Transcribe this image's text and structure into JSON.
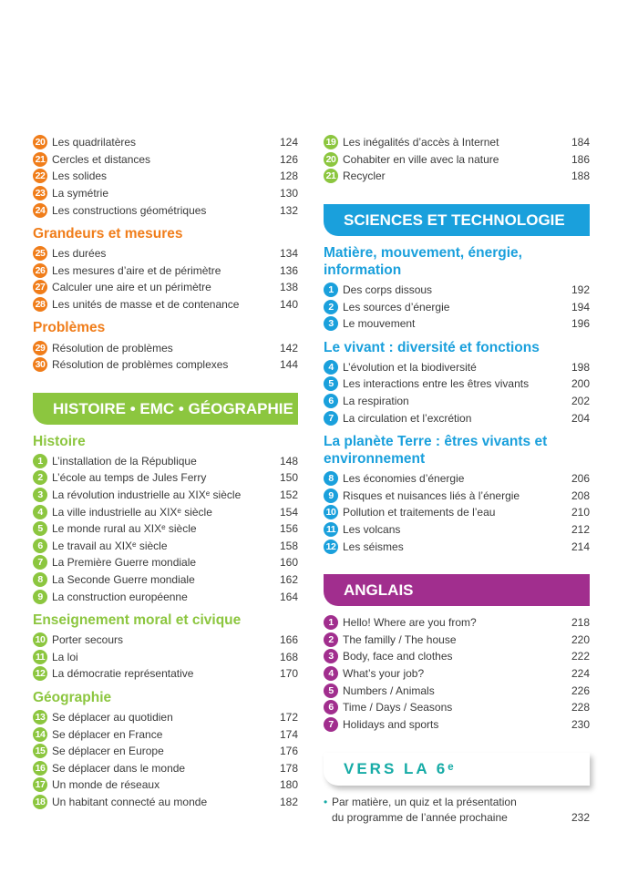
{
  "colors": {
    "mathematiques": "#f07d1a",
    "histoire_geo": "#8cc63f",
    "sciences": "#1aa0dc",
    "anglais": "#a12e8e",
    "vers_la_6e": "#16aba6",
    "text": "#3a3a3a"
  },
  "left": [
    {
      "kind": "items",
      "accent": "#f07d1a",
      "items": [
        {
          "n": "20",
          "title": "Les quadrilatères",
          "page": "124"
        },
        {
          "n": "21",
          "title": "Cercles et distances",
          "page": "126"
        },
        {
          "n": "22",
          "title": "Les solides",
          "page": "128"
        },
        {
          "n": "23",
          "title": "La symétrie",
          "page": "130"
        },
        {
          "n": "24",
          "title": "Les constructions géométriques",
          "page": "132"
        }
      ]
    },
    {
      "kind": "heading",
      "accent": "#f07d1a",
      "text": "Grandeurs et mesures"
    },
    {
      "kind": "items",
      "accent": "#f07d1a",
      "items": [
        {
          "n": "25",
          "title": "Les durées",
          "page": "134"
        },
        {
          "n": "26",
          "title": "Les mesures d’aire et de périmètre",
          "page": "136"
        },
        {
          "n": "27",
          "title": "Calculer une aire et un périmètre",
          "page": "138"
        },
        {
          "n": "28",
          "title": "Les unités de masse et de contenance",
          "page": "140"
        }
      ]
    },
    {
      "kind": "heading",
      "accent": "#f07d1a",
      "text": "Problèmes"
    },
    {
      "kind": "items",
      "accent": "#f07d1a",
      "items": [
        {
          "n": "29",
          "title": "Résolution de problèmes",
          "page": "142"
        },
        {
          "n": "30",
          "title": "Résolution de problèmes complexes",
          "page": "144"
        }
      ]
    },
    {
      "kind": "band",
      "accent": "#8cc63f",
      "text": "HISTOIRE • EMC • GÉOGRAPHIE"
    },
    {
      "kind": "heading",
      "accent": "#8cc63f",
      "text": "Histoire"
    },
    {
      "kind": "items",
      "accent": "#8cc63f",
      "items": [
        {
          "n": "1",
          "title": "L’installation de la République",
          "page": "148"
        },
        {
          "n": "2",
          "title": "L’école au temps de Jules Ferry",
          "page": "150"
        },
        {
          "n": "3",
          "title": "La révolution industrielle au XIXᵉ siècle",
          "page": "152"
        },
        {
          "n": "4",
          "title": "La ville industrielle au XIXᵉ siècle",
          "page": "154"
        },
        {
          "n": "5",
          "title": "Le monde rural au XIXᵉ siècle",
          "page": "156"
        },
        {
          "n": "6",
          "title": "Le travail au XIXᵉ siècle",
          "page": "158"
        },
        {
          "n": "7",
          "title": "La Première Guerre mondiale",
          "page": "160"
        },
        {
          "n": "8",
          "title": "La Seconde Guerre mondiale",
          "page": "162"
        },
        {
          "n": "9",
          "title": "La construction européenne",
          "page": "164"
        }
      ]
    },
    {
      "kind": "heading",
      "accent": "#8cc63f",
      "text": "Enseignement moral et civique"
    },
    {
      "kind": "items",
      "accent": "#8cc63f",
      "items": [
        {
          "n": "10",
          "title": "Porter secours",
          "page": "166"
        },
        {
          "n": "11",
          "title": "La loi",
          "page": "168"
        },
        {
          "n": "12",
          "title": "La démocratie représentative",
          "page": "170"
        }
      ]
    },
    {
      "kind": "heading",
      "accent": "#8cc63f",
      "text": "Géographie"
    },
    {
      "kind": "items",
      "accent": "#8cc63f",
      "items": [
        {
          "n": "13",
          "title": "Se déplacer au quotidien",
          "page": "172"
        },
        {
          "n": "14",
          "title": "Se déplacer en France",
          "page": "174"
        },
        {
          "n": "15",
          "title": "Se déplacer en Europe",
          "page": "176"
        },
        {
          "n": "16",
          "title": "Se déplacer dans le monde",
          "page": "178"
        },
        {
          "n": "17",
          "title": "Un monde de réseaux",
          "page": "180"
        },
        {
          "n": "18",
          "title": "Un habitant connecté au monde",
          "page": "182"
        }
      ]
    }
  ],
  "right": [
    {
      "kind": "items",
      "accent": "#8cc63f",
      "items": [
        {
          "n": "19",
          "title": "Les inégalités d’accès à Internet",
          "page": "184"
        },
        {
          "n": "20",
          "title": "Cohabiter en ville avec la nature",
          "page": "186"
        },
        {
          "n": "21",
          "title": "Recycler",
          "page": "188"
        }
      ]
    },
    {
      "kind": "band",
      "accent": "#1aa0dc",
      "text": "SCIENCES ET TECHNOLOGIE"
    },
    {
      "kind": "heading",
      "accent": "#1aa0dc",
      "text": "Matière, mouvement, énergie, information"
    },
    {
      "kind": "items",
      "accent": "#1aa0dc",
      "items": [
        {
          "n": "1",
          "title": "Des corps dissous",
          "page": "192"
        },
        {
          "n": "2",
          "title": "Les sources d’énergie",
          "page": "194"
        },
        {
          "n": "3",
          "title": "Le mouvement",
          "page": "196"
        }
      ]
    },
    {
      "kind": "heading",
      "accent": "#1aa0dc",
      "text": "Le vivant : diversité et fonctions"
    },
    {
      "kind": "items",
      "accent": "#1aa0dc",
      "items": [
        {
          "n": "4",
          "title": "L’évolution et la biodiversité",
          "page": "198"
        },
        {
          "n": "5",
          "title": "Les interactions entre les êtres vivants",
          "page": "200"
        },
        {
          "n": "6",
          "title": "La respiration",
          "page": "202"
        },
        {
          "n": "7",
          "title": "La circulation et l’excrétion",
          "page": "204"
        }
      ]
    },
    {
      "kind": "heading",
      "accent": "#1aa0dc",
      "text": "La planète Terre : êtres vivants et environnement"
    },
    {
      "kind": "items",
      "accent": "#1aa0dc",
      "items": [
        {
          "n": "8",
          "title": "Les économies d’énergie",
          "page": "206"
        },
        {
          "n": "9",
          "title": "Risques et nuisances liés à l’énergie",
          "page": "208"
        },
        {
          "n": "10",
          "title": "Pollution et traitements de l’eau",
          "page": "210"
        },
        {
          "n": "11",
          "title": "Les volcans",
          "page": "212"
        },
        {
          "n": "12",
          "title": "Les séismes",
          "page": "214"
        }
      ]
    },
    {
      "kind": "band",
      "accent": "#a12e8e",
      "text": "ANGLAIS"
    },
    {
      "kind": "items",
      "accent": "#a12e8e",
      "items": [
        {
          "n": "1",
          "title": "Hello! Where are you from?",
          "page": "218"
        },
        {
          "n": "2",
          "title": "The familly / The house",
          "page": "220"
        },
        {
          "n": "3",
          "title": "Body, face and clothes",
          "page": "222"
        },
        {
          "n": "4",
          "title": "What’s your job?",
          "page": "224"
        },
        {
          "n": "5",
          "title": "Numbers / Animals",
          "page": "226"
        },
        {
          "n": "6",
          "title": "Time / Days / Seasons",
          "page": "228"
        },
        {
          "n": "7",
          "title": "Holidays and sports",
          "page": "230"
        }
      ]
    },
    {
      "kind": "box",
      "accent": "#16aba6",
      "text": "VERS LA 6ᵉ"
    },
    {
      "kind": "bullet",
      "accent": "#16aba6",
      "text": "Par matière, un quiz et la présentation du programme de l’année prochaine",
      "page": "232"
    }
  ]
}
